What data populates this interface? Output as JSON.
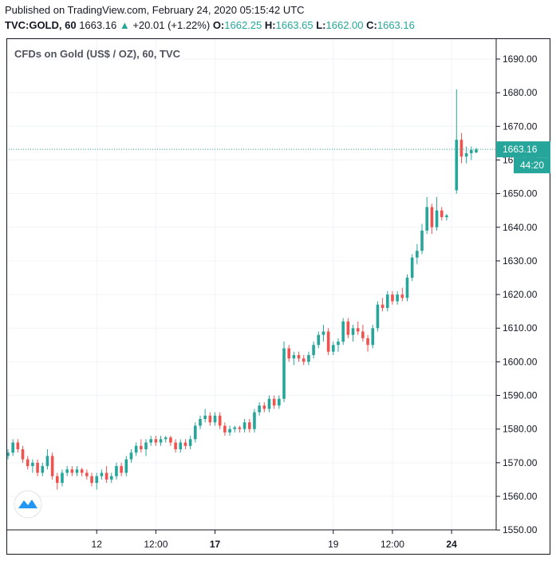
{
  "header": {
    "published": "Published on TradingView.com, February 24, 2020 05:15:42 UTC",
    "symbol": "TVC:GOLD, 60",
    "last": "1663.16",
    "change": "+20.01 (+1.22%)",
    "open_label": "O:",
    "open": "1662.25",
    "high_label": "H:",
    "high": "1663.65",
    "low_label": "L:",
    "low": "1662.00",
    "close_label": "C:",
    "close": "1663.16"
  },
  "colors": {
    "up": "#26a69a",
    "down": "#ef5350",
    "grid": "#f0f3fa",
    "axis": "#131722"
  },
  "icons": {
    "logo": "tradingview-logo-icon"
  },
  "chart_data": {
    "type": "candlestick",
    "title": "CFDs on Gold (US$ / OZ), 60, TVC",
    "ylim": [
      1550,
      1695
    ],
    "yticks": [
      1550,
      1560,
      1570,
      1580,
      1590,
      1600,
      1610,
      1620,
      1630,
      1640,
      1650,
      1660,
      1670,
      1680,
      1690
    ],
    "ytick_labels": [
      "1550.00",
      "1560.00",
      "1570.00",
      "1580.00",
      "1590.00",
      "1600.00",
      "1610.00",
      "1620.00",
      "1630.00",
      "1640.00",
      "1650.00",
      "1660.00",
      "1670.00",
      "1680.00",
      "1690.00"
    ],
    "xticks": [
      {
        "label": "12",
        "bold": false,
        "t": 18
      },
      {
        "label": "12:00",
        "bold": false,
        "t": 30
      },
      {
        "label": "17",
        "bold": true,
        "t": 42
      },
      {
        "label": "19",
        "bold": false,
        "t": 66
      },
      {
        "label": "12:00",
        "bold": false,
        "t": 78
      },
      {
        "label": "24",
        "bold": true,
        "t": 90
      }
    ],
    "last_price": 1663.16,
    "last_price_label": "1663.16",
    "countdown_label": "44:20",
    "series": [
      {
        "t": 0,
        "o": 1572,
        "h": 1574,
        "l": 1571,
        "c": 1573
      },
      {
        "t": 1,
        "o": 1573,
        "h": 1577,
        "l": 1572,
        "c": 1576
      },
      {
        "t": 2,
        "o": 1576,
        "h": 1577,
        "l": 1573,
        "c": 1574
      },
      {
        "t": 3,
        "o": 1574,
        "h": 1575,
        "l": 1570,
        "c": 1571
      },
      {
        "t": 4,
        "o": 1571,
        "h": 1572,
        "l": 1568,
        "c": 1569
      },
      {
        "t": 5,
        "o": 1569,
        "h": 1571,
        "l": 1567,
        "c": 1570
      },
      {
        "t": 6,
        "o": 1570,
        "h": 1571,
        "l": 1566,
        "c": 1567
      },
      {
        "t": 7,
        "o": 1567,
        "h": 1570,
        "l": 1566,
        "c": 1569
      },
      {
        "t": 8,
        "o": 1569,
        "h": 1574,
        "l": 1568,
        "c": 1572
      },
      {
        "t": 9,
        "o": 1572,
        "h": 1573,
        "l": 1565,
        "c": 1566
      },
      {
        "t": 10,
        "o": 1566,
        "h": 1567,
        "l": 1562,
        "c": 1564
      },
      {
        "t": 11,
        "o": 1564,
        "h": 1568,
        "l": 1563,
        "c": 1567
      },
      {
        "t": 12,
        "o": 1567,
        "h": 1569,
        "l": 1566,
        "c": 1568
      },
      {
        "t": 13,
        "o": 1568,
        "h": 1569,
        "l": 1566,
        "c": 1567
      },
      {
        "t": 14,
        "o": 1567,
        "h": 1569,
        "l": 1566,
        "c": 1568
      },
      {
        "t": 15,
        "o": 1568,
        "h": 1568.5,
        "l": 1566,
        "c": 1567
      },
      {
        "t": 16,
        "o": 1567,
        "h": 1568,
        "l": 1565,
        "c": 1566
      },
      {
        "t": 17,
        "o": 1566,
        "h": 1567,
        "l": 1563,
        "c": 1564
      },
      {
        "t": 18,
        "o": 1564,
        "h": 1567,
        "l": 1562,
        "c": 1566
      },
      {
        "t": 19,
        "o": 1566,
        "h": 1568,
        "l": 1565,
        "c": 1567
      },
      {
        "t": 20,
        "o": 1567,
        "h": 1569,
        "l": 1564,
        "c": 1565
      },
      {
        "t": 21,
        "o": 1565,
        "h": 1567,
        "l": 1564,
        "c": 1566
      },
      {
        "t": 22,
        "o": 1566,
        "h": 1570,
        "l": 1565,
        "c": 1569
      },
      {
        "t": 23,
        "o": 1569,
        "h": 1570,
        "l": 1566,
        "c": 1567
      },
      {
        "t": 24,
        "o": 1567,
        "h": 1572,
        "l": 1566,
        "c": 1571
      },
      {
        "t": 25,
        "o": 1571,
        "h": 1574,
        "l": 1570,
        "c": 1573
      },
      {
        "t": 26,
        "o": 1573,
        "h": 1576,
        "l": 1572,
        "c": 1575
      },
      {
        "t": 27,
        "o": 1575,
        "h": 1577,
        "l": 1573,
        "c": 1574
      },
      {
        "t": 28,
        "o": 1574,
        "h": 1577,
        "l": 1572,
        "c": 1576
      },
      {
        "t": 29,
        "o": 1576,
        "h": 1578,
        "l": 1575,
        "c": 1577
      },
      {
        "t": 30,
        "o": 1577,
        "h": 1578,
        "l": 1575,
        "c": 1576
      },
      {
        "t": 31,
        "o": 1576,
        "h": 1578,
        "l": 1575,
        "c": 1577
      },
      {
        "t": 32,
        "o": 1577,
        "h": 1578,
        "l": 1576,
        "c": 1577.5
      },
      {
        "t": 33,
        "o": 1577.5,
        "h": 1578,
        "l": 1575,
        "c": 1576
      },
      {
        "t": 34,
        "o": 1576,
        "h": 1577,
        "l": 1573,
        "c": 1574
      },
      {
        "t": 35,
        "o": 1574,
        "h": 1577,
        "l": 1573,
        "c": 1576
      },
      {
        "t": 36,
        "o": 1576,
        "h": 1577,
        "l": 1574,
        "c": 1575
      },
      {
        "t": 37,
        "o": 1575,
        "h": 1578,
        "l": 1574,
        "c": 1577
      },
      {
        "t": 38,
        "o": 1577,
        "h": 1582,
        "l": 1576,
        "c": 1581
      },
      {
        "t": 39,
        "o": 1581,
        "h": 1584,
        "l": 1580,
        "c": 1583
      },
      {
        "t": 40,
        "o": 1583,
        "h": 1586,
        "l": 1582,
        "c": 1584
      },
      {
        "t": 41,
        "o": 1584,
        "h": 1585,
        "l": 1581,
        "c": 1582
      },
      {
        "t": 42,
        "o": 1582,
        "h": 1585,
        "l": 1581,
        "c": 1584
      },
      {
        "t": 43,
        "o": 1584,
        "h": 1585,
        "l": 1580,
        "c": 1581
      },
      {
        "t": 44,
        "o": 1581,
        "h": 1582,
        "l": 1578,
        "c": 1579
      },
      {
        "t": 45,
        "o": 1579,
        "h": 1581,
        "l": 1578,
        "c": 1580
      },
      {
        "t": 46,
        "o": 1580,
        "h": 1581,
        "l": 1579,
        "c": 1580.5
      },
      {
        "t": 47,
        "o": 1580.5,
        "h": 1581,
        "l": 1579,
        "c": 1580
      },
      {
        "t": 48,
        "o": 1580,
        "h": 1583,
        "l": 1579,
        "c": 1582
      },
      {
        "t": 49,
        "o": 1582,
        "h": 1583,
        "l": 1579,
        "c": 1580
      },
      {
        "t": 50,
        "o": 1580,
        "h": 1586,
        "l": 1579,
        "c": 1585
      },
      {
        "t": 51,
        "o": 1585,
        "h": 1588,
        "l": 1584,
        "c": 1587
      },
      {
        "t": 52,
        "o": 1587,
        "h": 1588,
        "l": 1585,
        "c": 1586
      },
      {
        "t": 53,
        "o": 1586,
        "h": 1590,
        "l": 1585,
        "c": 1589
      },
      {
        "t": 54,
        "o": 1589,
        "h": 1590,
        "l": 1586,
        "c": 1587
      },
      {
        "t": 55,
        "o": 1587,
        "h": 1590,
        "l": 1586,
        "c": 1589
      },
      {
        "t": 56,
        "o": 1589,
        "h": 1606,
        "l": 1588,
        "c": 1604
      },
      {
        "t": 57,
        "o": 1604,
        "h": 1605,
        "l": 1600,
        "c": 1601
      },
      {
        "t": 58,
        "o": 1601,
        "h": 1603,
        "l": 1599,
        "c": 1602
      },
      {
        "t": 59,
        "o": 1602,
        "h": 1603,
        "l": 1600,
        "c": 1601
      },
      {
        "t": 60,
        "o": 1601,
        "h": 1602,
        "l": 1599,
        "c": 1600
      },
      {
        "t": 61,
        "o": 1600,
        "h": 1603,
        "l": 1599,
        "c": 1602
      },
      {
        "t": 62,
        "o": 1602,
        "h": 1606,
        "l": 1601,
        "c": 1605
      },
      {
        "t": 63,
        "o": 1605,
        "h": 1609,
        "l": 1604,
        "c": 1608
      },
      {
        "t": 64,
        "o": 1608,
        "h": 1611,
        "l": 1606,
        "c": 1609
      },
      {
        "t": 65,
        "o": 1609,
        "h": 1610,
        "l": 1602,
        "c": 1603
      },
      {
        "t": 66,
        "o": 1603,
        "h": 1606,
        "l": 1602,
        "c": 1605
      },
      {
        "t": 67,
        "o": 1605,
        "h": 1607,
        "l": 1603,
        "c": 1606
      },
      {
        "t": 68,
        "o": 1606,
        "h": 1613,
        "l": 1605,
        "c": 1612
      },
      {
        "t": 69,
        "o": 1612,
        "h": 1613,
        "l": 1607,
        "c": 1608
      },
      {
        "t": 70,
        "o": 1608,
        "h": 1611,
        "l": 1606,
        "c": 1610
      },
      {
        "t": 71,
        "o": 1610,
        "h": 1612,
        "l": 1608,
        "c": 1609
      },
      {
        "t": 72,
        "o": 1609,
        "h": 1611,
        "l": 1606,
        "c": 1607
      },
      {
        "t": 73,
        "o": 1607,
        "h": 1608,
        "l": 1603,
        "c": 1605
      },
      {
        "t": 74,
        "o": 1605,
        "h": 1611,
        "l": 1604,
        "c": 1610
      },
      {
        "t": 75,
        "o": 1610,
        "h": 1618,
        "l": 1609,
        "c": 1617
      },
      {
        "t": 76,
        "o": 1617,
        "h": 1619,
        "l": 1615,
        "c": 1616
      },
      {
        "t": 77,
        "o": 1616,
        "h": 1621,
        "l": 1615,
        "c": 1620
      },
      {
        "t": 78,
        "o": 1620,
        "h": 1621,
        "l": 1617,
        "c": 1618
      },
      {
        "t": 79,
        "o": 1618,
        "h": 1621,
        "l": 1617,
        "c": 1620
      },
      {
        "t": 80,
        "o": 1620,
        "h": 1622,
        "l": 1618,
        "c": 1619
      },
      {
        "t": 81,
        "o": 1619,
        "h": 1626,
        "l": 1618,
        "c": 1625
      },
      {
        "t": 82,
        "o": 1625,
        "h": 1632,
        "l": 1624,
        "c": 1631
      },
      {
        "t": 83,
        "o": 1631,
        "h": 1635,
        "l": 1629,
        "c": 1633
      },
      {
        "t": 84,
        "o": 1633,
        "h": 1641,
        "l": 1632,
        "c": 1639
      },
      {
        "t": 85,
        "o": 1639,
        "h": 1649,
        "l": 1638,
        "c": 1646
      },
      {
        "t": 86,
        "o": 1646,
        "h": 1647,
        "l": 1638,
        "c": 1640
      },
      {
        "t": 87,
        "o": 1640,
        "h": 1649,
        "l": 1639,
        "c": 1645
      },
      {
        "t": 88,
        "o": 1645,
        "h": 1646,
        "l": 1642,
        "c": 1643
      },
      {
        "t": 89,
        "o": 1643,
        "h": 1644,
        "l": 1642,
        "c": 1643.5
      },
      {
        "t": 91,
        "o": 1651,
        "h": 1681,
        "l": 1650,
        "c": 1666
      },
      {
        "t": 92,
        "o": 1666,
        "h": 1668,
        "l": 1659,
        "c": 1661
      },
      {
        "t": 93,
        "o": 1661,
        "h": 1664,
        "l": 1659,
        "c": 1662
      },
      {
        "t": 94,
        "o": 1662,
        "h": 1664,
        "l": 1660,
        "c": 1663
      },
      {
        "t": 95,
        "o": 1662.25,
        "h": 1663.65,
        "l": 1662,
        "c": 1663.16
      }
    ]
  }
}
